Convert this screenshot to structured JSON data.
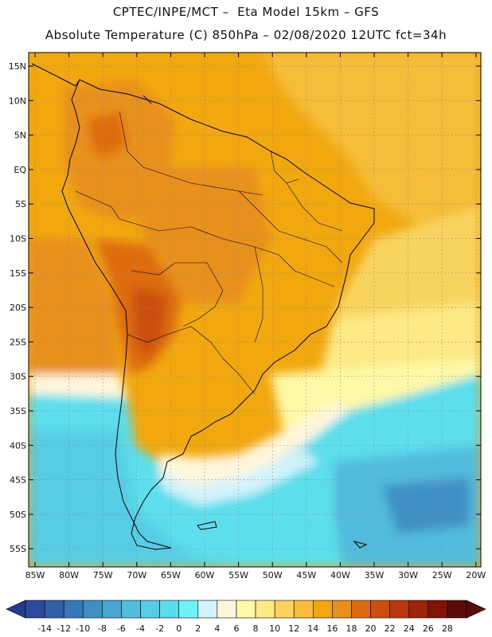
{
  "header": {
    "line1": "CPTEC/INPE/MCT –  Eta Model 15km – GFS",
    "line2": "Absolute Temperature (C) 850hPa – 02/08/2020 12UTC fct=34h"
  },
  "axes": {
    "lat_labels": [
      "15N",
      "10N",
      "5N",
      "EQ",
      "5S",
      "10S",
      "15S",
      "20S",
      "25S",
      "30S",
      "35S",
      "40S",
      "45S",
      "50S",
      "55S"
    ],
    "lon_labels": [
      "85W",
      "80W",
      "75W",
      "70W",
      "65W",
      "60W",
      "55W",
      "50W",
      "45W",
      "40W",
      "35W",
      "30W",
      "25W",
      "20W"
    ]
  },
  "colorbar": {
    "ticks": [
      "-14",
      "-12",
      "-10",
      "-8",
      "-6",
      "-4",
      "-2",
      "0",
      "2",
      "4",
      "6",
      "8",
      "10",
      "12",
      "14",
      "16",
      "18",
      "20",
      "22",
      "24",
      "26",
      "28"
    ],
    "colors": [
      "#2b4a99",
      "#2f5fa8",
      "#3677b7",
      "#3f8fc4",
      "#49a6d1",
      "#51bcdc",
      "#57cde4",
      "#5bdeec",
      "#6ef2f6",
      "#d3f3fb",
      "#fff6dc",
      "#fff8a6",
      "#fde985",
      "#f9d35e",
      "#f5bd39",
      "#f1a80f",
      "#e8901a",
      "#de6c0e",
      "#cc4f10",
      "#b8380e",
      "#9c2409",
      "#7e1507",
      "#5a0a08"
    ],
    "under_color": "#233c8a",
    "over_color": "#5a0a08"
  }
}
